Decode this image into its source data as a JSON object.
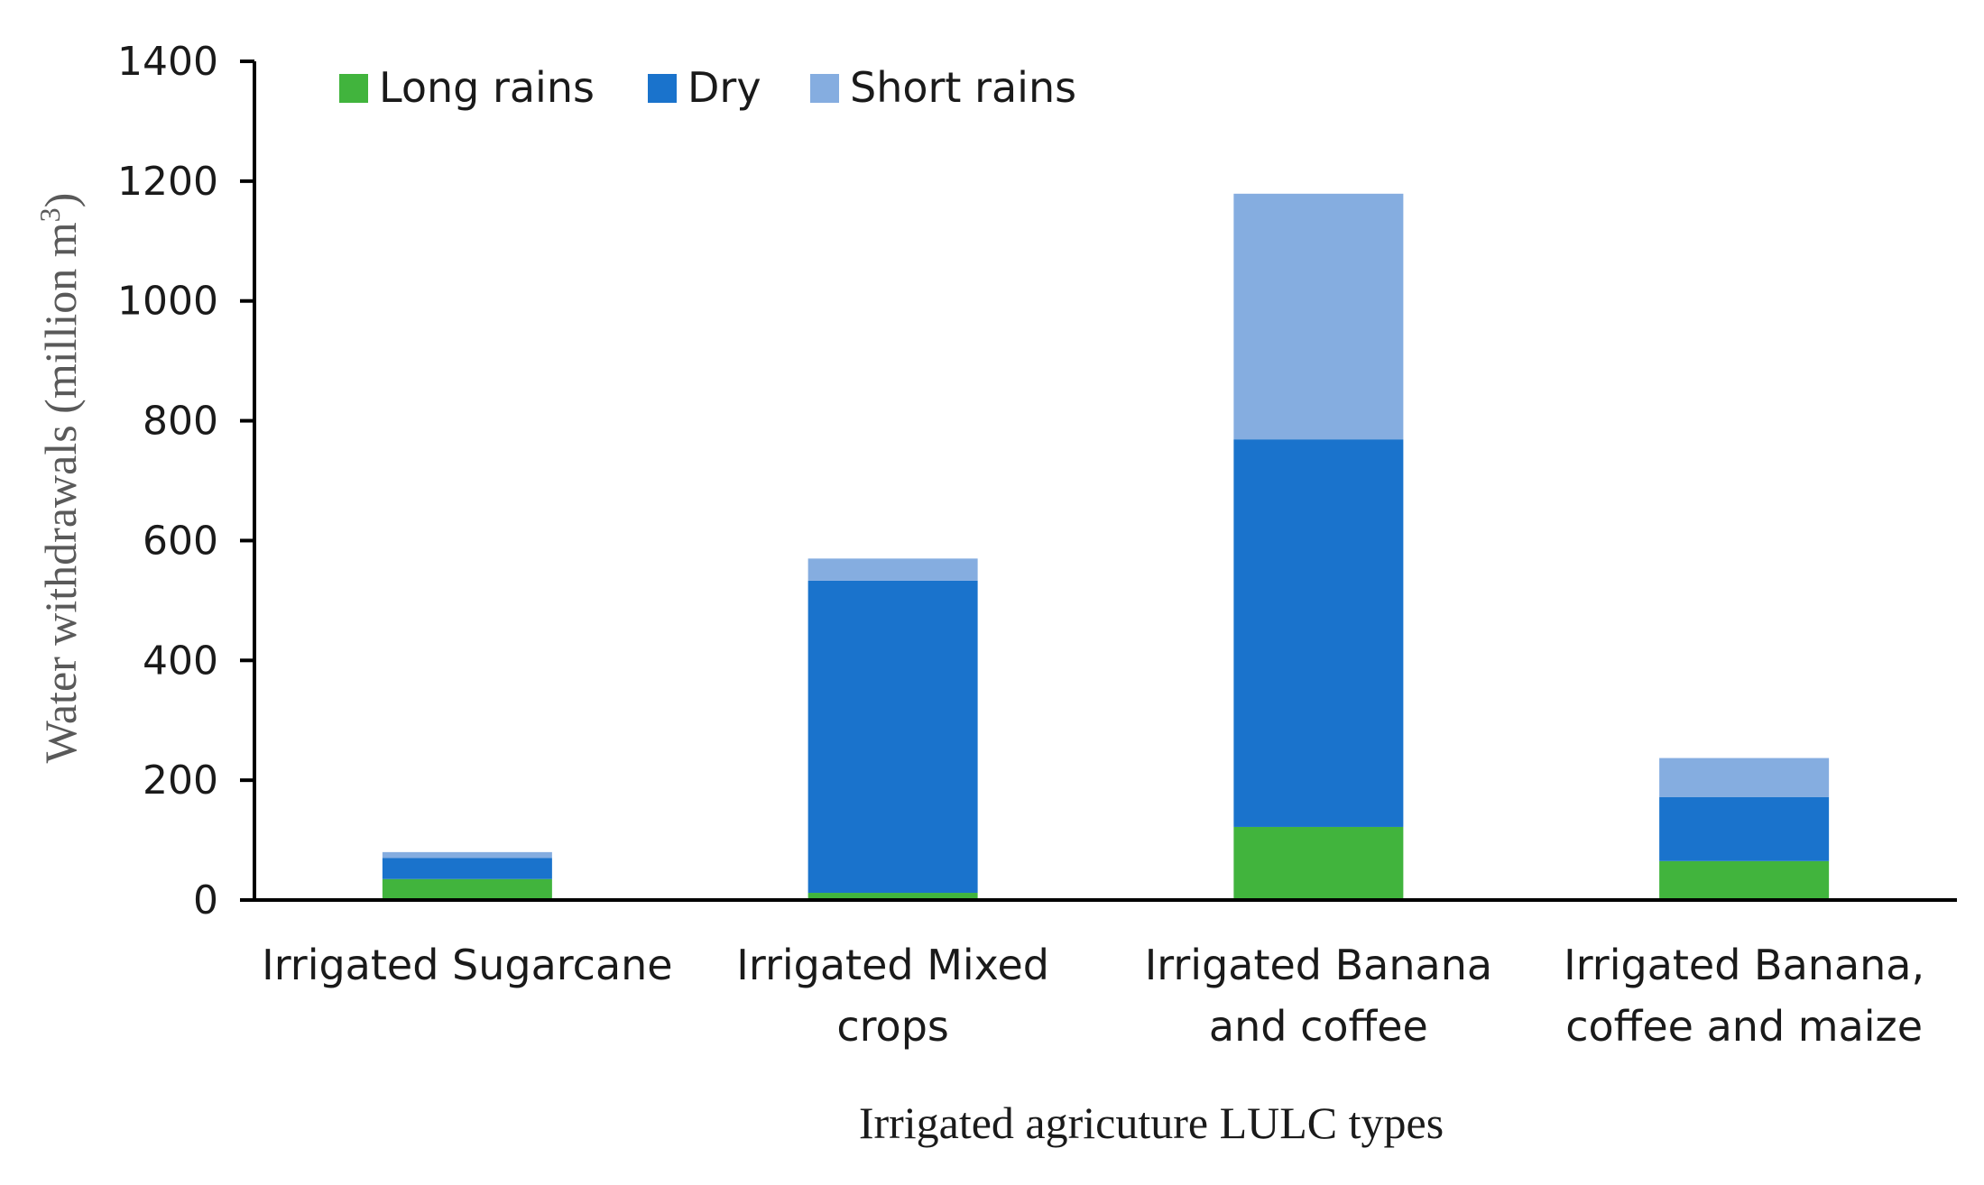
{
  "chart_data": {
    "type": "bar",
    "stacked": true,
    "title": "",
    "xlabel": "Irrigated agricuture LULC types",
    "ylabel": {
      "text": "Water withdrawals (million m",
      "superscript": "3",
      "suffix": ")"
    },
    "ylim": [
      0,
      1400
    ],
    "yticks": [
      0,
      200,
      400,
      600,
      800,
      1000,
      1200,
      1400
    ],
    "categories": [
      [
        "Irrigated Sugarcane"
      ],
      [
        "Irrigated Mixed",
        "crops"
      ],
      [
        "Irrigated Banana",
        "and coffee"
      ],
      [
        "Irrigated Banana,",
        "coffee and maize"
      ]
    ],
    "series": [
      {
        "name": "Long rains",
        "color": "#41b43d",
        "values": [
          35,
          12,
          122,
          65
        ]
      },
      {
        "name": "Dry",
        "color": "#1a73cc",
        "values": [
          35,
          521,
          647,
          107
        ]
      },
      {
        "name": "Short rains",
        "color": "#85ade0",
        "values": [
          10,
          37,
          410,
          65
        ]
      }
    ],
    "legend_position": "top-left",
    "grid": false
  }
}
